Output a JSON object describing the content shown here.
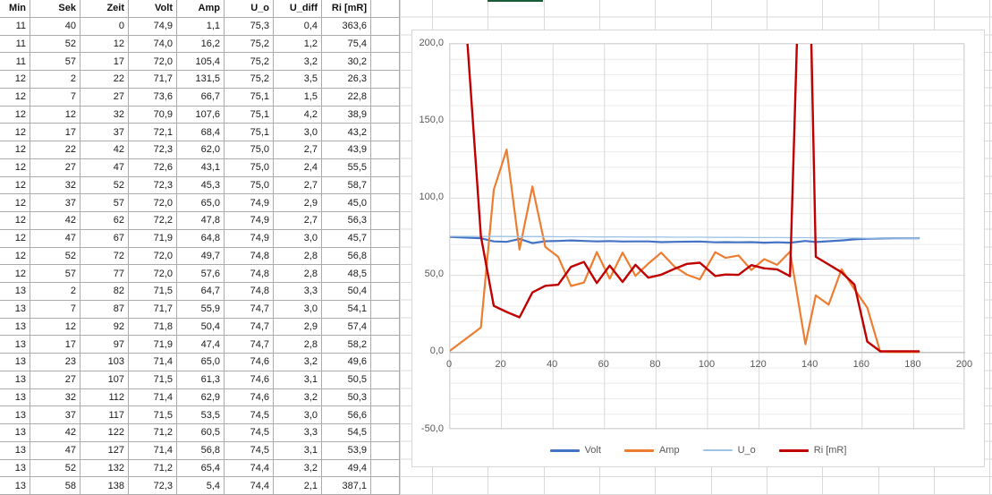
{
  "sheet": {
    "selection_marker": {
      "color": "#1a5c38"
    },
    "table": {
      "headers": [
        "Min",
        "Sek",
        "Zeit",
        "Volt",
        "Amp",
        "U_o",
        "U_diff",
        "Ri [mR]"
      ],
      "rows": [
        [
          "11",
          "40",
          "0",
          "74,9",
          "1,1",
          "75,3",
          "0,4",
          "363,6"
        ],
        [
          "11",
          "52",
          "12",
          "74,0",
          "16,2",
          "75,2",
          "1,2",
          "75,4"
        ],
        [
          "11",
          "57",
          "17",
          "72,0",
          "105,4",
          "75,2",
          "3,2",
          "30,2"
        ],
        [
          "12",
          "2",
          "22",
          "71,7",
          "131,5",
          "75,2",
          "3,5",
          "26,3"
        ],
        [
          "12",
          "7",
          "27",
          "73,6",
          "66,7",
          "75,1",
          "1,5",
          "22,8"
        ],
        [
          "12",
          "12",
          "32",
          "70,9",
          "107,6",
          "75,1",
          "4,2",
          "38,9"
        ],
        [
          "12",
          "17",
          "37",
          "72,1",
          "68,4",
          "75,1",
          "3,0",
          "43,2"
        ],
        [
          "12",
          "22",
          "42",
          "72,3",
          "62,0",
          "75,0",
          "2,7",
          "43,9"
        ],
        [
          "12",
          "27",
          "47",
          "72,6",
          "43,1",
          "75,0",
          "2,4",
          "55,5"
        ],
        [
          "12",
          "32",
          "52",
          "72,3",
          "45,3",
          "75,0",
          "2,7",
          "58,7"
        ],
        [
          "12",
          "37",
          "57",
          "72,0",
          "65,0",
          "74,9",
          "2,9",
          "45,0"
        ],
        [
          "12",
          "42",
          "62",
          "72,2",
          "47,8",
          "74,9",
          "2,7",
          "56,3"
        ],
        [
          "12",
          "47",
          "67",
          "71,9",
          "64,8",
          "74,9",
          "3,0",
          "45,7"
        ],
        [
          "12",
          "52",
          "72",
          "72,0",
          "49,7",
          "74,8",
          "2,8",
          "56,8"
        ],
        [
          "12",
          "57",
          "77",
          "72,0",
          "57,6",
          "74,8",
          "2,8",
          "48,5"
        ],
        [
          "13",
          "2",
          "82",
          "71,5",
          "64,7",
          "74,8",
          "3,3",
          "50,4"
        ],
        [
          "13",
          "7",
          "87",
          "71,7",
          "55,9",
          "74,7",
          "3,0",
          "54,1"
        ],
        [
          "13",
          "12",
          "92",
          "71,8",
          "50,4",
          "74,7",
          "2,9",
          "57,4"
        ],
        [
          "13",
          "17",
          "97",
          "71,9",
          "47,4",
          "74,7",
          "2,8",
          "58,2"
        ],
        [
          "13",
          "23",
          "103",
          "71,4",
          "65,0",
          "74,6",
          "3,2",
          "49,6"
        ],
        [
          "13",
          "27",
          "107",
          "71,5",
          "61,3",
          "74,6",
          "3,1",
          "50,5"
        ],
        [
          "13",
          "32",
          "112",
          "71,4",
          "62,9",
          "74,6",
          "3,2",
          "50,3"
        ],
        [
          "13",
          "37",
          "117",
          "71,5",
          "53,5",
          "74,5",
          "3,0",
          "56,6"
        ],
        [
          "13",
          "42",
          "122",
          "71,2",
          "60,5",
          "74,5",
          "3,3",
          "54,5"
        ],
        [
          "13",
          "47",
          "127",
          "71,4",
          "56,8",
          "74,5",
          "3,1",
          "53,9"
        ],
        [
          "13",
          "52",
          "132",
          "71,2",
          "65,4",
          "74,4",
          "3,2",
          "49,4"
        ],
        [
          "13",
          "58",
          "138",
          "72,3",
          "5,4",
          "74,4",
          "2,1",
          "387,1"
        ]
      ]
    }
  },
  "chart_data": {
    "type": "line",
    "x": [
      0,
      12,
      17,
      22,
      27,
      32,
      37,
      42,
      47,
      52,
      57,
      62,
      67,
      72,
      77,
      82,
      87,
      92,
      97,
      103,
      107,
      112,
      117,
      122,
      127,
      132,
      138,
      142,
      147,
      152,
      157,
      162,
      167,
      172,
      177,
      182
    ],
    "series": [
      {
        "name": "Volt",
        "color": "#4472C4",
        "stroke_width": 2.2,
        "values": [
          74.9,
          74.0,
          72.0,
          71.7,
          73.6,
          70.9,
          72.1,
          72.3,
          72.6,
          72.3,
          72.0,
          72.2,
          71.9,
          72.0,
          72.0,
          71.5,
          71.7,
          71.8,
          71.9,
          71.4,
          71.5,
          71.4,
          71.5,
          71.2,
          71.4,
          71.2,
          72.3,
          71.6,
          72.1,
          72.6,
          73.3,
          73.7,
          73.9,
          74.0,
          74.0,
          74.0
        ]
      },
      {
        "name": "Amp",
        "color": "#ED7D31",
        "stroke_width": 2.2,
        "values": [
          1.1,
          16.2,
          105.4,
          131.5,
          66.7,
          107.6,
          68.4,
          62.0,
          43.1,
          45.3,
          65.0,
          47.8,
          64.8,
          49.7,
          57.6,
          64.7,
          55.9,
          50.4,
          47.4,
          65.0,
          61.3,
          62.9,
          53.5,
          60.5,
          56.8,
          65.4,
          5.4,
          37.0,
          31.0,
          54.0,
          41.0,
          29.0,
          0.5,
          0.3,
          0.3,
          0.3
        ]
      },
      {
        "name": "U_o",
        "color": "#9DC3E6",
        "stroke_width": 1.3,
        "values": [
          75.3,
          75.2,
          75.2,
          75.2,
          75.1,
          75.1,
          75.1,
          75.0,
          75.0,
          75.0,
          74.9,
          74.9,
          74.9,
          74.8,
          74.8,
          74.8,
          74.7,
          74.7,
          74.7,
          74.6,
          74.6,
          74.6,
          74.5,
          74.5,
          74.5,
          74.4,
          74.4,
          74.3,
          74.3,
          74.2,
          74.2,
          74.1,
          74.1,
          74.1,
          74.0,
          74.0
        ]
      },
      {
        "name": "Ri [mR]",
        "color": "#C00000",
        "stroke_width": 2.4,
        "values": [
          363.6,
          75.4,
          30.2,
          26.3,
          22.8,
          38.9,
          43.2,
          43.9,
          55.5,
          58.7,
          45.0,
          56.3,
          45.7,
          56.8,
          48.5,
          50.4,
          54.1,
          57.4,
          58.2,
          49.6,
          50.5,
          50.3,
          56.6,
          54.5,
          53.9,
          49.4,
          387.1,
          62.0,
          57.0,
          52.0,
          44.0,
          7.0,
          0.8,
          0.8,
          0.8,
          0.8
        ]
      }
    ],
    "title": "",
    "xlabel": "",
    "ylabel": "",
    "xlim": [
      0,
      200
    ],
    "ylim": [
      -50,
      200
    ],
    "x_axis": {
      "ticks": [
        {
          "label": "0",
          "value": 0
        },
        {
          "label": "20",
          "value": 20
        },
        {
          "label": "40",
          "value": 40
        },
        {
          "label": "60",
          "value": 60
        },
        {
          "label": "80",
          "value": 80
        },
        {
          "label": "100",
          "value": 100
        },
        {
          "label": "120",
          "value": 120
        },
        {
          "label": "140",
          "value": 140
        },
        {
          "label": "160",
          "value": 160
        },
        {
          "label": "180",
          "value": 180
        },
        {
          "label": "200",
          "value": 200
        }
      ]
    },
    "y_axis": {
      "ticks": [
        {
          "label": "200,0",
          "value": 200
        },
        {
          "label": "150,0",
          "value": 150
        },
        {
          "label": "100,0",
          "value": 100
        },
        {
          "label": "50,0",
          "value": 50
        },
        {
          "label": "0,0",
          "value": 0
        },
        {
          "label": "-50,0",
          "value": -50
        }
      ]
    },
    "grid": {
      "y_minor_step": 10,
      "y_major_step": 50,
      "x_major_step": 20
    },
    "legend_position": "bottom"
  }
}
